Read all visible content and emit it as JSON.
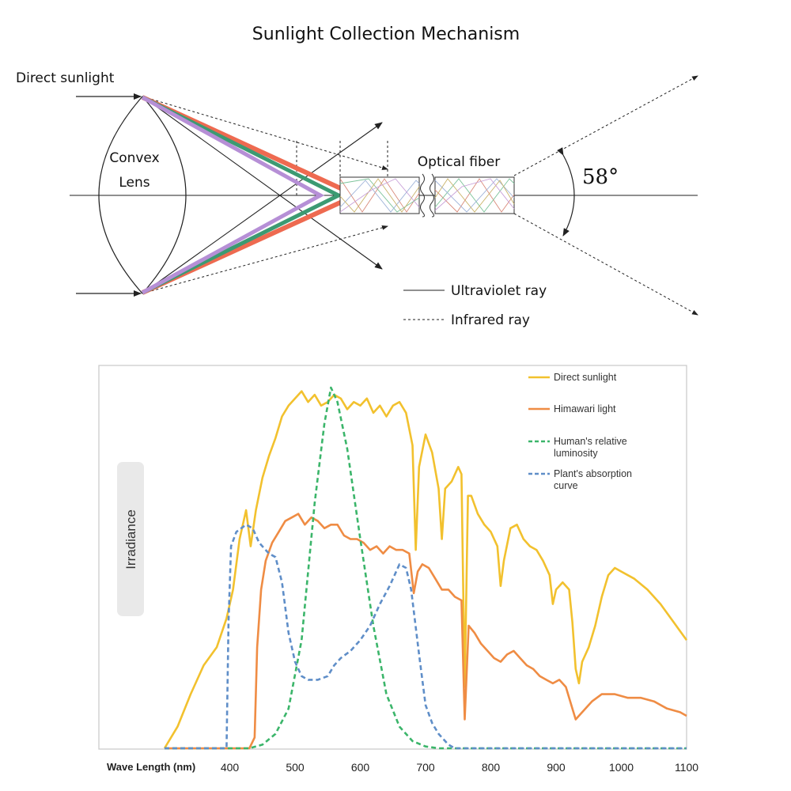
{
  "diagram": {
    "title": "Sunlight Collection Mechanism",
    "labels": {
      "direct_sunlight": "Direct sunlight",
      "lens_line1": "Convex",
      "lens_line2": "Lens",
      "optical_fiber": "Optical fiber",
      "angle": "58°",
      "legend_uv": "Ultraviolet ray",
      "legend_ir": "Infrared ray"
    },
    "colors": {
      "red": "#ee6a50",
      "green": "#3c9a72",
      "purple": "#b68fd6",
      "line": "#222222"
    }
  },
  "chart_data": {
    "type": "line",
    "xlabel": "Wave Length (nm)",
    "ylabel": "Irradiance",
    "xlim": [
      300,
      1100
    ],
    "ylim": [
      0,
      1
    ],
    "x_ticks": [
      400,
      500,
      600,
      700,
      800,
      900,
      1000,
      1100
    ],
    "legend_position": "top-right",
    "grid": false,
    "series": [
      {
        "name": "Direct sunlight",
        "color": "#f2c12e",
        "dash": "solid",
        "points": [
          [
            300,
            0
          ],
          [
            320,
            0.06
          ],
          [
            340,
            0.15
          ],
          [
            360,
            0.23
          ],
          [
            380,
            0.28
          ],
          [
            395,
            0.36
          ],
          [
            405,
            0.44
          ],
          [
            415,
            0.58
          ],
          [
            425,
            0.66
          ],
          [
            432,
            0.56
          ],
          [
            440,
            0.66
          ],
          [
            450,
            0.75
          ],
          [
            460,
            0.81
          ],
          [
            470,
            0.86
          ],
          [
            480,
            0.92
          ],
          [
            490,
            0.95
          ],
          [
            500,
            0.97
          ],
          [
            510,
            0.99
          ],
          [
            520,
            0.96
          ],
          [
            530,
            0.98
          ],
          [
            540,
            0.95
          ],
          [
            550,
            0.96
          ],
          [
            560,
            0.98
          ],
          [
            570,
            0.97
          ],
          [
            580,
            0.94
          ],
          [
            590,
            0.96
          ],
          [
            600,
            0.95
          ],
          [
            610,
            0.97
          ],
          [
            620,
            0.93
          ],
          [
            630,
            0.95
          ],
          [
            640,
            0.92
          ],
          [
            650,
            0.95
          ],
          [
            660,
            0.96
          ],
          [
            670,
            0.93
          ],
          [
            680,
            0.84
          ],
          [
            685,
            0.55
          ],
          [
            690,
            0.78
          ],
          [
            700,
            0.87
          ],
          [
            710,
            0.82
          ],
          [
            720,
            0.72
          ],
          [
            725,
            0.58
          ],
          [
            730,
            0.72
          ],
          [
            740,
            0.74
          ],
          [
            750,
            0.78
          ],
          [
            755,
            0.76
          ],
          [
            760,
            0.17
          ],
          [
            765,
            0.7
          ],
          [
            770,
            0.7
          ],
          [
            780,
            0.65
          ],
          [
            790,
            0.62
          ],
          [
            800,
            0.6
          ],
          [
            810,
            0.56
          ],
          [
            815,
            0.45
          ],
          [
            820,
            0.52
          ],
          [
            830,
            0.61
          ],
          [
            840,
            0.62
          ],
          [
            850,
            0.58
          ],
          [
            860,
            0.56
          ],
          [
            870,
            0.55
          ],
          [
            880,
            0.52
          ],
          [
            890,
            0.48
          ],
          [
            895,
            0.4
          ],
          [
            900,
            0.44
          ],
          [
            910,
            0.46
          ],
          [
            920,
            0.44
          ],
          [
            925,
            0.35
          ],
          [
            930,
            0.22
          ],
          [
            935,
            0.18
          ],
          [
            940,
            0.24
          ],
          [
            950,
            0.28
          ],
          [
            960,
            0.34
          ],
          [
            970,
            0.42
          ],
          [
            980,
            0.48
          ],
          [
            990,
            0.5
          ],
          [
            1000,
            0.49
          ],
          [
            1020,
            0.47
          ],
          [
            1040,
            0.44
          ],
          [
            1060,
            0.4
          ],
          [
            1080,
            0.35
          ],
          [
            1100,
            0.3
          ]
        ]
      },
      {
        "name": "Himawari light",
        "color": "#ef8c44",
        "dash": "solid",
        "points": [
          [
            300,
            0
          ],
          [
            430,
            0
          ],
          [
            438,
            0.03
          ],
          [
            442,
            0.28
          ],
          [
            448,
            0.44
          ],
          [
            455,
            0.52
          ],
          [
            465,
            0.57
          ],
          [
            475,
            0.6
          ],
          [
            485,
            0.63
          ],
          [
            495,
            0.64
          ],
          [
            505,
            0.65
          ],
          [
            515,
            0.62
          ],
          [
            525,
            0.64
          ],
          [
            535,
            0.63
          ],
          [
            545,
            0.61
          ],
          [
            555,
            0.62
          ],
          [
            565,
            0.62
          ],
          [
            575,
            0.59
          ],
          [
            585,
            0.58
          ],
          [
            595,
            0.58
          ],
          [
            605,
            0.57
          ],
          [
            615,
            0.55
          ],
          [
            625,
            0.56
          ],
          [
            635,
            0.54
          ],
          [
            645,
            0.56
          ],
          [
            655,
            0.55
          ],
          [
            665,
            0.55
          ],
          [
            675,
            0.54
          ],
          [
            682,
            0.43
          ],
          [
            688,
            0.49
          ],
          [
            695,
            0.51
          ],
          [
            705,
            0.5
          ],
          [
            715,
            0.47
          ],
          [
            725,
            0.44
          ],
          [
            735,
            0.44
          ],
          [
            745,
            0.42
          ],
          [
            755,
            0.41
          ],
          [
            760,
            0.08
          ],
          [
            766,
            0.34
          ],
          [
            775,
            0.32
          ],
          [
            785,
            0.29
          ],
          [
            795,
            0.27
          ],
          [
            805,
            0.25
          ],
          [
            815,
            0.24
          ],
          [
            825,
            0.26
          ],
          [
            835,
            0.27
          ],
          [
            845,
            0.25
          ],
          [
            855,
            0.23
          ],
          [
            865,
            0.22
          ],
          [
            875,
            0.2
          ],
          [
            885,
            0.19
          ],
          [
            895,
            0.18
          ],
          [
            905,
            0.19
          ],
          [
            915,
            0.17
          ],
          [
            925,
            0.11
          ],
          [
            930,
            0.08
          ],
          [
            940,
            0.1
          ],
          [
            955,
            0.13
          ],
          [
            970,
            0.15
          ],
          [
            990,
            0.15
          ],
          [
            1010,
            0.14
          ],
          [
            1030,
            0.14
          ],
          [
            1050,
            0.13
          ],
          [
            1070,
            0.11
          ],
          [
            1090,
            0.1
          ],
          [
            1100,
            0.09
          ]
        ]
      },
      {
        "name": "Human's relative luminosity",
        "color": "#3bb56a",
        "dash": "dashed",
        "points": [
          [
            300,
            0
          ],
          [
            430,
            0
          ],
          [
            450,
            0.01
          ],
          [
            470,
            0.04
          ],
          [
            490,
            0.11
          ],
          [
            510,
            0.3
          ],
          [
            530,
            0.68
          ],
          [
            545,
            0.9
          ],
          [
            555,
            1.0
          ],
          [
            565,
            0.96
          ],
          [
            580,
            0.83
          ],
          [
            600,
            0.58
          ],
          [
            620,
            0.34
          ],
          [
            640,
            0.15
          ],
          [
            660,
            0.06
          ],
          [
            680,
            0.02
          ],
          [
            700,
            0.005
          ],
          [
            720,
            0
          ],
          [
            1100,
            0
          ]
        ]
      },
      {
        "name": "Plant's absorption curve",
        "color": "#5f8ec8",
        "dash": "dashed",
        "points": [
          [
            300,
            0
          ],
          [
            395,
            0
          ],
          [
            398,
            0.35
          ],
          [
            402,
            0.56
          ],
          [
            410,
            0.6
          ],
          [
            425,
            0.62
          ],
          [
            435,
            0.61
          ],
          [
            445,
            0.57
          ],
          [
            460,
            0.54
          ],
          [
            470,
            0.53
          ],
          [
            480,
            0.46
          ],
          [
            490,
            0.32
          ],
          [
            500,
            0.24
          ],
          [
            510,
            0.2
          ],
          [
            520,
            0.19
          ],
          [
            535,
            0.19
          ],
          [
            550,
            0.2
          ],
          [
            560,
            0.23
          ],
          [
            570,
            0.25
          ],
          [
            585,
            0.27
          ],
          [
            600,
            0.3
          ],
          [
            615,
            0.34
          ],
          [
            630,
            0.4
          ],
          [
            645,
            0.45
          ],
          [
            660,
            0.51
          ],
          [
            670,
            0.5
          ],
          [
            678,
            0.44
          ],
          [
            690,
            0.26
          ],
          [
            700,
            0.12
          ],
          [
            710,
            0.07
          ],
          [
            720,
            0.04
          ],
          [
            735,
            0.01
          ],
          [
            745,
            0
          ],
          [
            1100,
            0
          ]
        ]
      }
    ]
  }
}
